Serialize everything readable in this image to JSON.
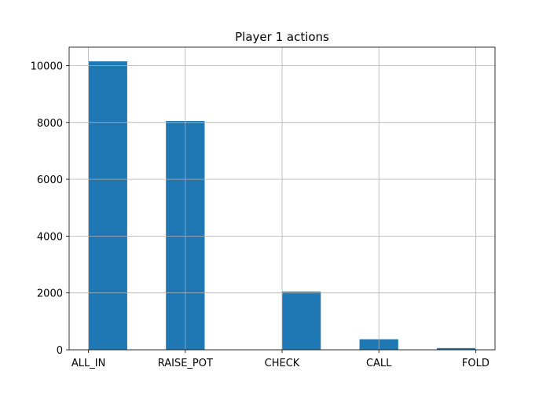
{
  "chart_data": {
    "type": "histogram",
    "title": "Player 1 actions",
    "xlabel": "",
    "ylabel": "",
    "categories": [
      "ALL_IN",
      "RAISE_POT",
      "CHECK",
      "CALL",
      "FOLD"
    ],
    "bins": [
      {
        "label": "ALL_IN",
        "value": 10150
      },
      {
        "label": "",
        "value": 0
      },
      {
        "label": "RAISE_POT",
        "value": 8050
      },
      {
        "label": "",
        "value": 0
      },
      {
        "label": "",
        "value": 0
      },
      {
        "label": "CHECK",
        "value": 2050
      },
      {
        "label": "",
        "value": 0
      },
      {
        "label": "CALL",
        "value": 370
      },
      {
        "label": "",
        "value": 0
      },
      {
        "label": "FOLD",
        "value": 60
      }
    ],
    "xlim": [
      -0.2,
      4.2
    ],
    "ylim": [
      0,
      10650
    ],
    "yticks": [
      0,
      2000,
      4000,
      6000,
      8000,
      10000
    ],
    "grid": true,
    "bar_color": "#1f77b4",
    "grid_color": "#b0b0b0"
  }
}
